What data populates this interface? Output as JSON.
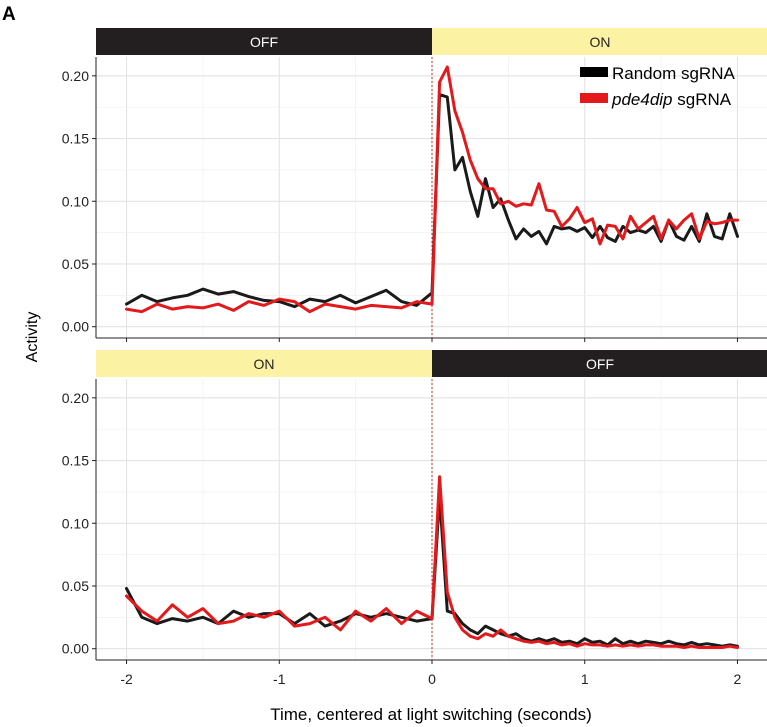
{
  "panel_label": "A",
  "legend": {
    "entries": [
      {
        "label": "Random sgRNA",
        "color": "#000000"
      },
      {
        "label_italic": "pde4dip",
        "label_rest": " sgRNA",
        "color": "#e3191c"
      }
    ]
  },
  "xlabel": "Time, centered at light switching (seconds)",
  "ylabel": "Activity",
  "chart_data": [
    {
      "type": "line",
      "panel": "top",
      "strip": [
        {
          "label": "OFF",
          "from": -2.2,
          "to": 0,
          "bg": "#231f20",
          "fg": "#ffffff"
        },
        {
          "label": "ON",
          "from": 0,
          "to": 2.2,
          "bg": "#fbf3a3",
          "fg": "#231f20"
        }
      ],
      "xlim": [
        -2.2,
        2.2
      ],
      "ylim": [
        -0.009,
        0.215
      ],
      "x_ticks": [
        -2,
        -1,
        0,
        1,
        2
      ],
      "y_ticks": [
        0.0,
        0.05,
        0.1,
        0.15,
        0.2
      ],
      "y_tick_labels": [
        "0.00",
        "0.05",
        "0.10",
        "0.15",
        "0.20"
      ],
      "vline_x": 0,
      "grid": true,
      "legend_position": "top-right",
      "series": [
        {
          "name": "Random sgRNA",
          "color": "#1a1a1a",
          "x": [
            -2.0,
            -1.9,
            -1.8,
            -1.7,
            -1.6,
            -1.5,
            -1.4,
            -1.3,
            -1.2,
            -1.1,
            -1.0,
            -0.9,
            -0.8,
            -0.7,
            -0.6,
            -0.5,
            -0.4,
            -0.3,
            -0.2,
            -0.1,
            0.0,
            0.05,
            0.1,
            0.15,
            0.2,
            0.25,
            0.3,
            0.35,
            0.4,
            0.45,
            0.5,
            0.55,
            0.6,
            0.65,
            0.7,
            0.75,
            0.8,
            0.85,
            0.9,
            0.95,
            1.0,
            1.05,
            1.1,
            1.15,
            1.2,
            1.25,
            1.3,
            1.35,
            1.4,
            1.45,
            1.5,
            1.55,
            1.6,
            1.65,
            1.7,
            1.75,
            1.8,
            1.85,
            1.9,
            1.95,
            2.0
          ],
          "y": [
            0.018,
            0.025,
            0.02,
            0.023,
            0.025,
            0.03,
            0.026,
            0.028,
            0.024,
            0.021,
            0.02,
            0.016,
            0.022,
            0.02,
            0.025,
            0.019,
            0.024,
            0.029,
            0.02,
            0.017,
            0.027,
            0.185,
            0.183,
            0.125,
            0.135,
            0.108,
            0.088,
            0.118,
            0.095,
            0.102,
            0.085,
            0.07,
            0.078,
            0.072,
            0.076,
            0.066,
            0.08,
            0.078,
            0.079,
            0.076,
            0.079,
            0.071,
            0.08,
            0.071,
            0.068,
            0.08,
            0.075,
            0.077,
            0.075,
            0.08,
            0.068,
            0.085,
            0.072,
            0.069,
            0.08,
            0.068,
            0.09,
            0.072,
            0.07,
            0.09,
            0.072
          ]
        },
        {
          "name": "pde4dip sgRNA",
          "color": "#e3191c",
          "x": [
            -2.0,
            -1.9,
            -1.8,
            -1.7,
            -1.6,
            -1.5,
            -1.4,
            -1.3,
            -1.2,
            -1.1,
            -1.0,
            -0.9,
            -0.8,
            -0.7,
            -0.6,
            -0.5,
            -0.4,
            -0.3,
            -0.2,
            -0.1,
            0.0,
            0.05,
            0.1,
            0.15,
            0.2,
            0.25,
            0.3,
            0.35,
            0.4,
            0.45,
            0.5,
            0.55,
            0.6,
            0.65,
            0.7,
            0.75,
            0.8,
            0.85,
            0.9,
            0.95,
            1.0,
            1.05,
            1.1,
            1.15,
            1.2,
            1.25,
            1.3,
            1.35,
            1.4,
            1.45,
            1.5,
            1.55,
            1.6,
            1.65,
            1.7,
            1.75,
            1.8,
            1.85,
            1.9,
            1.95,
            2.0
          ],
          "y": [
            0.014,
            0.012,
            0.018,
            0.014,
            0.016,
            0.015,
            0.018,
            0.013,
            0.02,
            0.017,
            0.022,
            0.02,
            0.012,
            0.018,
            0.016,
            0.014,
            0.017,
            0.016,
            0.015,
            0.02,
            0.018,
            0.195,
            0.207,
            0.172,
            0.155,
            0.133,
            0.118,
            0.11,
            0.11,
            0.098,
            0.1,
            0.096,
            0.098,
            0.097,
            0.114,
            0.093,
            0.092,
            0.08,
            0.086,
            0.095,
            0.083,
            0.086,
            0.066,
            0.081,
            0.08,
            0.07,
            0.088,
            0.078,
            0.083,
            0.088,
            0.07,
            0.085,
            0.078,
            0.085,
            0.09,
            0.07,
            0.084,
            0.082,
            0.083,
            0.085,
            0.085
          ]
        }
      ]
    },
    {
      "type": "line",
      "panel": "bottom",
      "strip": [
        {
          "label": "ON",
          "from": -2.2,
          "to": 0,
          "bg": "#fbf3a3",
          "fg": "#231f20"
        },
        {
          "label": "OFF",
          "from": 0,
          "to": 2.2,
          "bg": "#231f20",
          "fg": "#ffffff"
        }
      ],
      "xlim": [
        -2.2,
        2.2
      ],
      "ylim": [
        -0.009,
        0.215
      ],
      "x_ticks": [
        -2,
        -1,
        0,
        1,
        2
      ],
      "x_tick_labels": [
        "-2",
        "-1",
        "0",
        "1",
        "2"
      ],
      "y_ticks": [
        0.0,
        0.05,
        0.1,
        0.15,
        0.2
      ],
      "y_tick_labels": [
        "0.00",
        "0.05",
        "0.10",
        "0.15",
        "0.20"
      ],
      "vline_x": 0,
      "grid": true,
      "series": [
        {
          "name": "Random sgRNA",
          "color": "#1a1a1a",
          "x": [
            -2.0,
            -1.9,
            -1.8,
            -1.7,
            -1.6,
            -1.5,
            -1.4,
            -1.3,
            -1.2,
            -1.1,
            -1.0,
            -0.9,
            -0.8,
            -0.7,
            -0.6,
            -0.5,
            -0.4,
            -0.3,
            -0.2,
            -0.1,
            0.0,
            0.05,
            0.1,
            0.15,
            0.2,
            0.25,
            0.3,
            0.35,
            0.4,
            0.45,
            0.5,
            0.55,
            0.6,
            0.65,
            0.7,
            0.75,
            0.8,
            0.85,
            0.9,
            0.95,
            1.0,
            1.05,
            1.1,
            1.15,
            1.2,
            1.25,
            1.3,
            1.35,
            1.4,
            1.45,
            1.5,
            1.55,
            1.6,
            1.65,
            1.7,
            1.75,
            1.8,
            1.85,
            1.9,
            1.95,
            2.0
          ],
          "y": [
            0.048,
            0.025,
            0.02,
            0.024,
            0.022,
            0.025,
            0.02,
            0.03,
            0.025,
            0.028,
            0.028,
            0.02,
            0.028,
            0.018,
            0.022,
            0.028,
            0.025,
            0.028,
            0.025,
            0.022,
            0.024,
            0.122,
            0.03,
            0.028,
            0.02,
            0.015,
            0.012,
            0.018,
            0.015,
            0.012,
            0.01,
            0.012,
            0.008,
            0.006,
            0.008,
            0.006,
            0.008,
            0.005,
            0.006,
            0.004,
            0.008,
            0.005,
            0.006,
            0.003,
            0.008,
            0.004,
            0.006,
            0.004,
            0.006,
            0.005,
            0.004,
            0.006,
            0.004,
            0.003,
            0.005,
            0.003,
            0.004,
            0.003,
            0.002,
            0.003,
            0.002
          ]
        },
        {
          "name": "pde4dip sgRNA",
          "color": "#e3191c",
          "x": [
            -2.0,
            -1.9,
            -1.8,
            -1.7,
            -1.6,
            -1.5,
            -1.4,
            -1.3,
            -1.2,
            -1.1,
            -1.0,
            -0.9,
            -0.8,
            -0.7,
            -0.6,
            -0.5,
            -0.4,
            -0.3,
            -0.2,
            -0.1,
            0.0,
            0.05,
            0.1,
            0.15,
            0.2,
            0.25,
            0.3,
            0.35,
            0.4,
            0.45,
            0.5,
            0.55,
            0.6,
            0.65,
            0.7,
            0.75,
            0.8,
            0.85,
            0.9,
            0.95,
            1.0,
            1.05,
            1.1,
            1.15,
            1.2,
            1.25,
            1.3,
            1.35,
            1.4,
            1.45,
            1.5,
            1.55,
            1.6,
            1.65,
            1.7,
            1.75,
            1.8,
            1.85,
            1.9,
            1.95,
            2.0
          ],
          "y": [
            0.042,
            0.03,
            0.022,
            0.035,
            0.025,
            0.032,
            0.02,
            0.022,
            0.028,
            0.025,
            0.03,
            0.018,
            0.02,
            0.025,
            0.015,
            0.03,
            0.022,
            0.032,
            0.02,
            0.03,
            0.024,
            0.137,
            0.045,
            0.025,
            0.015,
            0.01,
            0.008,
            0.012,
            0.01,
            0.015,
            0.01,
            0.008,
            0.006,
            0.005,
            0.006,
            0.004,
            0.005,
            0.003,
            0.004,
            0.002,
            0.004,
            0.003,
            0.003,
            0.002,
            0.003,
            0.002,
            0.003,
            0.002,
            0.003,
            0.003,
            0.002,
            0.002,
            0.002,
            0.001,
            0.002,
            0.001,
            0.001,
            0.001,
            0.001,
            0.002,
            0.001
          ]
        }
      ]
    }
  ]
}
